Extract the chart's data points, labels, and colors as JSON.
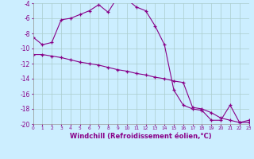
{
  "xlabel": "Windchill (Refroidissement éolien,°C)",
  "background_color": "#cceeff",
  "grid_color": "#aacccc",
  "line_color": "#880088",
  "x_hours": [
    0,
    1,
    2,
    3,
    4,
    5,
    6,
    7,
    8,
    9,
    10,
    11,
    12,
    13,
    14,
    15,
    16,
    17,
    18,
    19,
    20,
    21,
    22,
    23
  ],
  "line1_y": [
    -8.5,
    -9.5,
    -9.2,
    -6.2,
    -6.0,
    -5.5,
    -5.0,
    -4.2,
    -5.2,
    -3.2,
    -3.5,
    -4.5,
    -5.0,
    -7.0,
    -9.5,
    -15.5,
    -17.5,
    -18.0,
    -18.2,
    -19.5,
    -19.5,
    -17.5,
    -19.8,
    -19.5
  ],
  "line2_y": [
    -10.8,
    -10.8,
    -11.0,
    -11.2,
    -11.5,
    -11.8,
    -12.0,
    -12.2,
    -12.5,
    -12.8,
    -13.0,
    -13.3,
    -13.5,
    -13.8,
    -14.0,
    -14.3,
    -14.5,
    -17.8,
    -18.0,
    -18.5,
    -19.2,
    -19.5,
    -19.8,
    -19.8
  ],
  "ylim": [
    -20,
    -4
  ],
  "xlim": [
    0,
    23
  ],
  "yticks": [
    -20,
    -18,
    -16,
    -14,
    -12,
    -10,
    -8,
    -6,
    -4
  ],
  "xticks": [
    0,
    1,
    2,
    3,
    4,
    5,
    6,
    7,
    8,
    9,
    10,
    11,
    12,
    13,
    14,
    15,
    16,
    17,
    18,
    19,
    20,
    21,
    22,
    23
  ],
  "xlabel_fontsize": 6,
  "tick_fontsize": 5.5
}
